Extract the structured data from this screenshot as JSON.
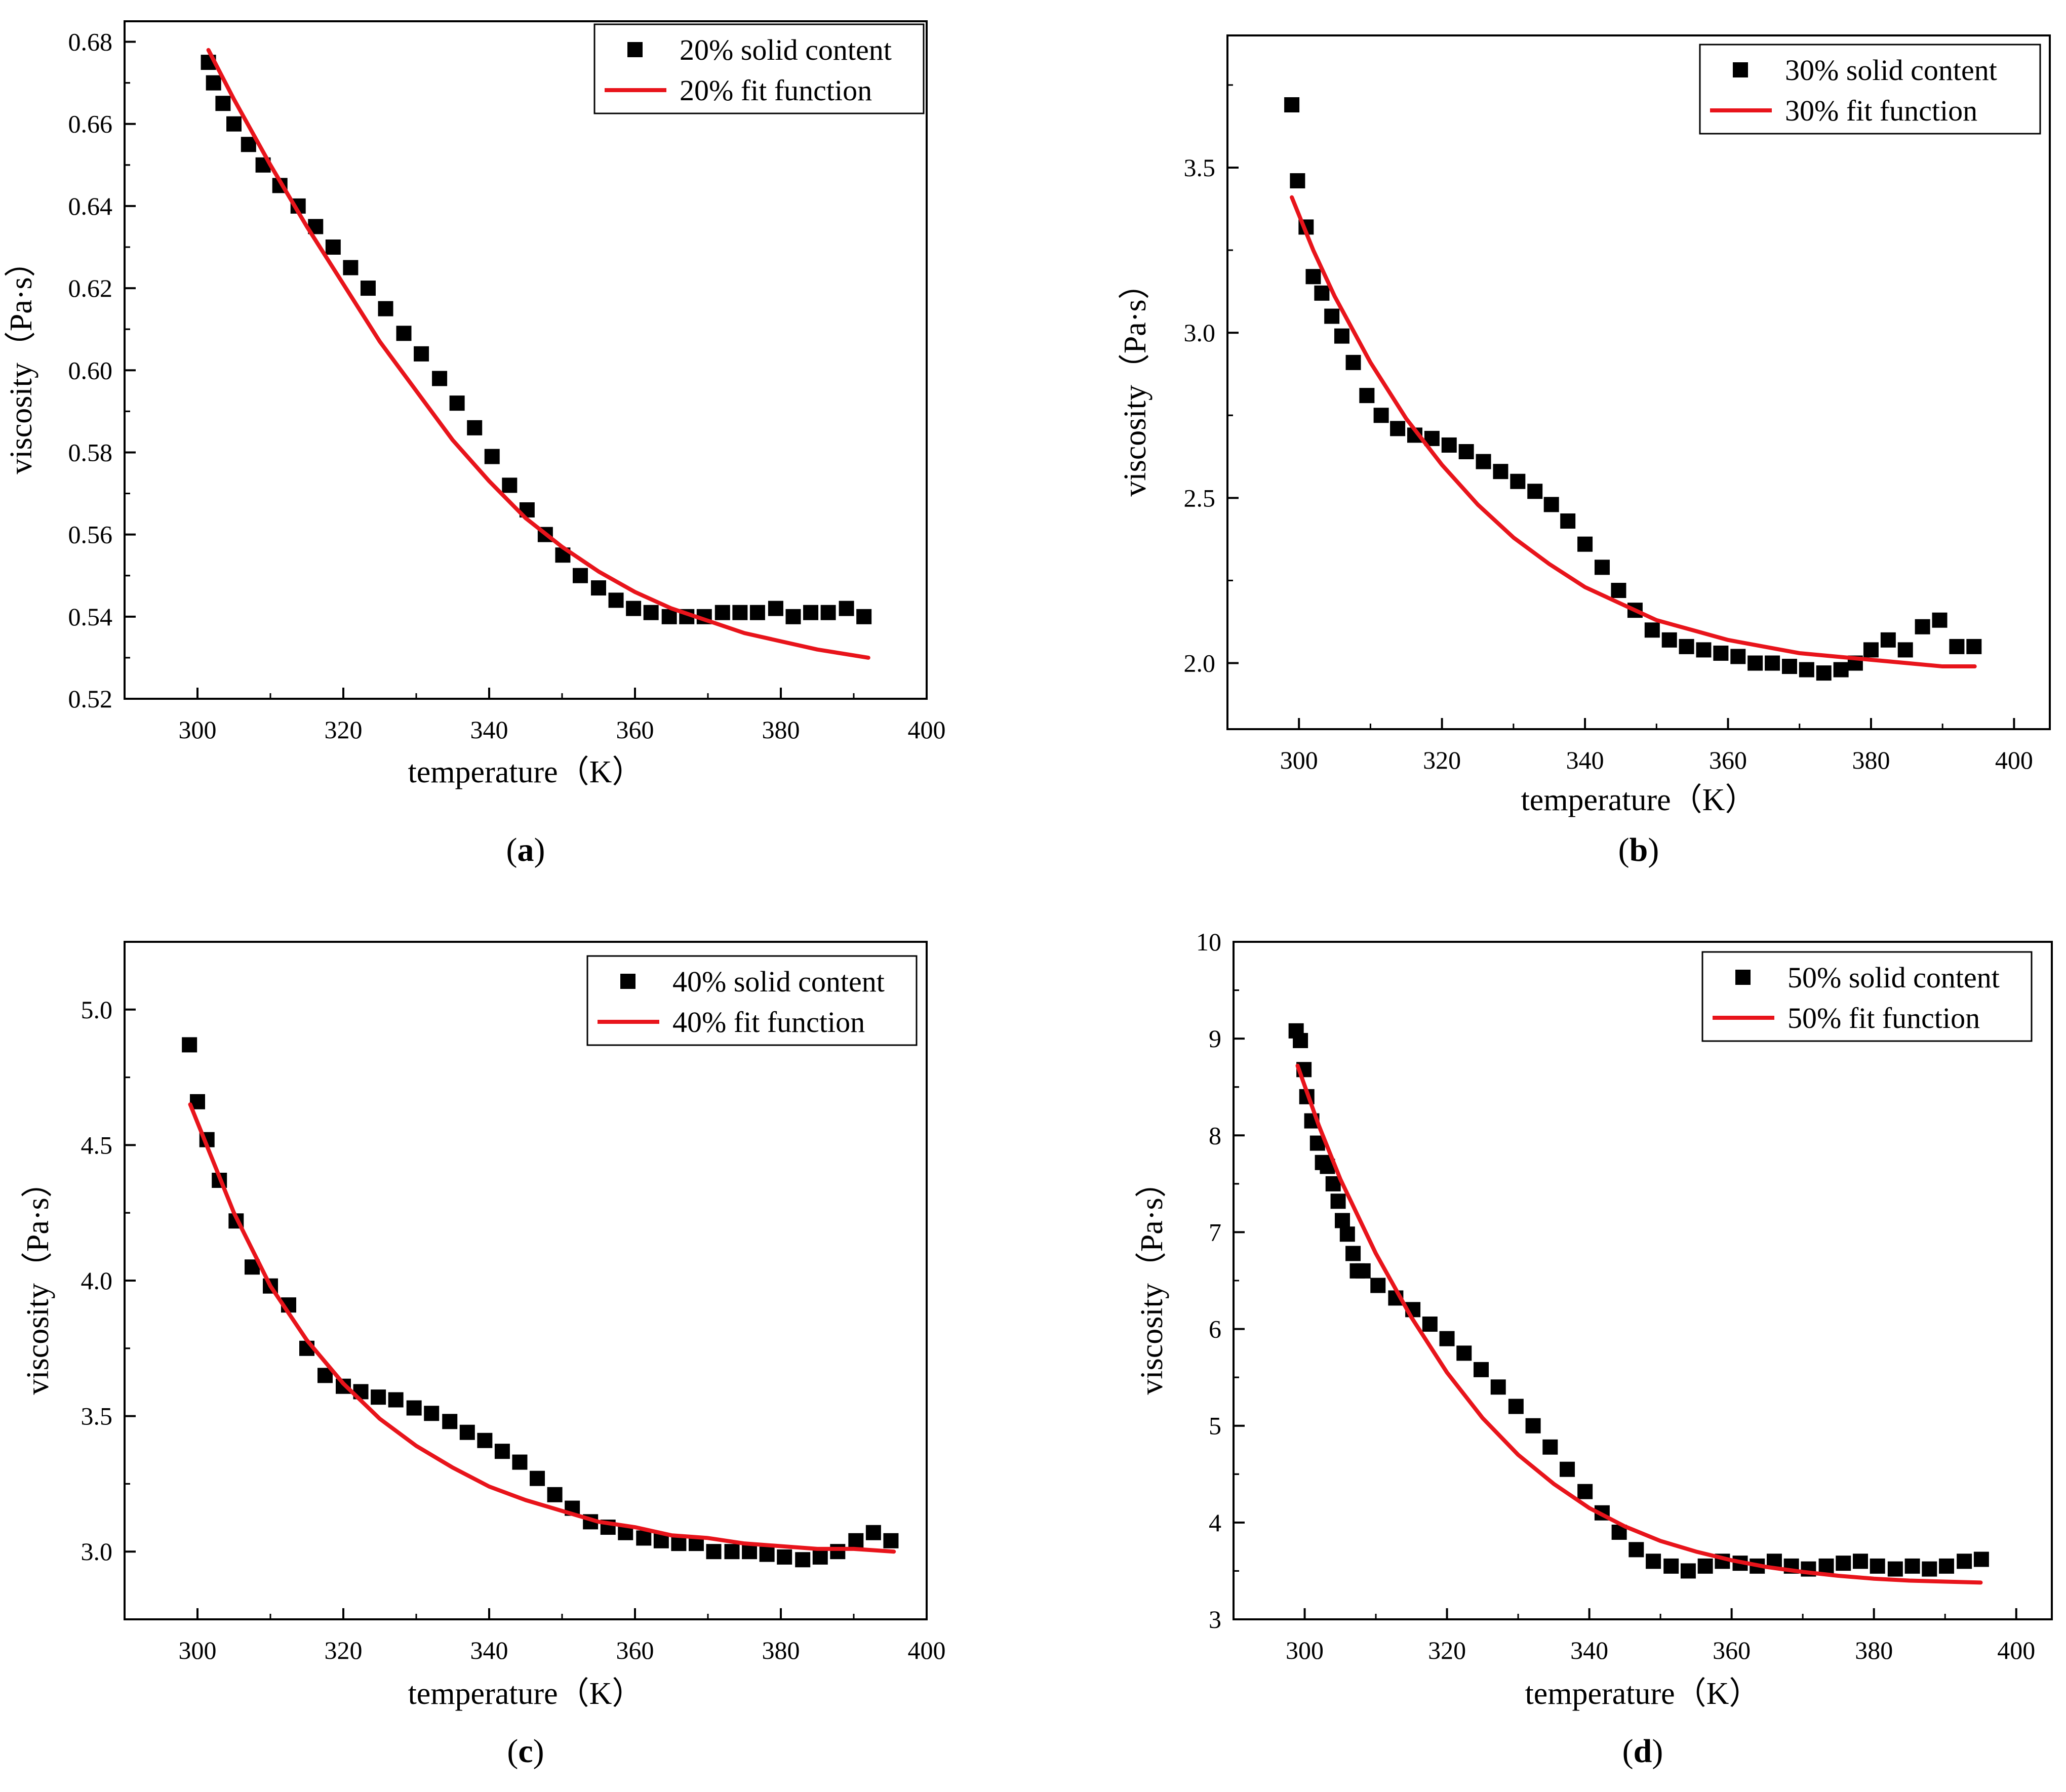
{
  "figure": {
    "panels": [
      {
        "id": "a",
        "label_open": "(",
        "label_letter": "a",
        "label_close": ")"
      },
      {
        "id": "b",
        "label_open": "(",
        "label_letter": "b",
        "label_close": ")"
      },
      {
        "id": "c",
        "label_open": "(",
        "label_letter": "c",
        "label_close": ")"
      },
      {
        "id": "d",
        "label_open": "(",
        "label_letter": "d",
        "label_close": ")"
      }
    ]
  },
  "colors": {
    "marker": "#000000",
    "fit_line": "#e8141b",
    "axis": "#000000",
    "background": "#ffffff"
  },
  "chart_data": [
    {
      "id": "a",
      "type": "scatter",
      "xlabel": "temperature（K）",
      "ylabel": "viscosity（Pa·s）",
      "xlim": [
        290,
        400
      ],
      "ylim": [
        0.52,
        0.685
      ],
      "xticks": [
        "300",
        "320",
        "340",
        "360",
        "380",
        "400"
      ],
      "xtick_values": [
        300,
        320,
        340,
        360,
        380,
        400
      ],
      "yticks": [
        "0.52",
        "0.54",
        "0.56",
        "0.58",
        "0.60",
        "0.62",
        "0.64",
        "0.66",
        "0.68"
      ],
      "ytick_values": [
        0.52,
        0.54,
        0.56,
        0.58,
        0.6,
        0.62,
        0.64,
        0.66,
        0.68
      ],
      "legend_position": "top-right",
      "series": [
        {
          "name": "20% solid content",
          "kind": "markers",
          "x": [
            301.5,
            302.2,
            303.5,
            305.0,
            307.0,
            309.0,
            311.3,
            313.8,
            316.2,
            318.6,
            321.0,
            323.4,
            325.8,
            328.3,
            330.7,
            333.2,
            335.6,
            338.0,
            340.4,
            342.8,
            345.2,
            347.7,
            350.1,
            352.5,
            355.0,
            357.4,
            359.8,
            362.2,
            364.7,
            367.1,
            369.5,
            372.0,
            374.4,
            376.8,
            379.3,
            381.7,
            384.1,
            386.5,
            389.0,
            391.4
          ],
          "y": [
            0.675,
            0.67,
            0.665,
            0.66,
            0.655,
            0.65,
            0.645,
            0.64,
            0.635,
            0.63,
            0.625,
            0.62,
            0.615,
            0.609,
            0.604,
            0.598,
            0.592,
            0.586,
            0.579,
            0.572,
            0.566,
            0.56,
            0.555,
            0.55,
            0.547,
            0.544,
            0.542,
            0.541,
            0.54,
            0.54,
            0.54,
            0.541,
            0.541,
            0.541,
            0.542,
            0.54,
            0.541,
            0.541,
            0.542,
            0.54
          ]
        },
        {
          "name": "20% fit function",
          "kind": "line",
          "x": [
            301.5,
            305,
            310,
            315,
            320,
            325,
            330,
            335,
            340,
            345,
            350,
            355,
            360,
            365,
            370,
            375,
            380,
            385,
            392
          ],
          "y": [
            0.678,
            0.666,
            0.65,
            0.635,
            0.621,
            0.607,
            0.595,
            0.583,
            0.573,
            0.564,
            0.557,
            0.551,
            0.546,
            0.542,
            0.539,
            0.536,
            0.534,
            0.532,
            0.53
          ]
        }
      ]
    },
    {
      "id": "b",
      "type": "scatter",
      "xlabel": "temperature（K）",
      "ylabel": "viscosity（Pa·s）",
      "xlim": [
        290,
        405
      ],
      "ylim": [
        1.8,
        3.9
      ],
      "xticks": [
        "300",
        "320",
        "340",
        "360",
        "380",
        "400"
      ],
      "xtick_values": [
        300,
        320,
        340,
        360,
        380,
        400
      ],
      "yticks": [
        "2.0",
        "2.5",
        "3.0",
        "3.5"
      ],
      "ytick_values": [
        2.0,
        2.5,
        3.0,
        3.5
      ],
      "legend_position": "top-right",
      "series": [
        {
          "name": "30% solid content",
          "kind": "markers",
          "x": [
            299.0,
            299.8,
            301.0,
            302.0,
            303.2,
            304.6,
            306.0,
            307.6,
            309.5,
            311.5,
            313.8,
            316.2,
            318.6,
            321.0,
            323.4,
            325.8,
            328.2,
            330.6,
            333.0,
            335.3,
            337.6,
            340.0,
            342.4,
            344.7,
            347.0,
            349.4,
            351.8,
            354.2,
            356.6,
            359.0,
            361.4,
            363.8,
            366.2,
            368.6,
            371.0,
            373.4,
            375.8,
            377.8,
            380.0,
            382.4,
            384.8,
            387.2,
            389.6,
            392.0,
            394.4
          ],
          "y": [
            3.69,
            3.46,
            3.32,
            3.17,
            3.12,
            3.05,
            2.99,
            2.91,
            2.81,
            2.75,
            2.71,
            2.69,
            2.68,
            2.66,
            2.64,
            2.61,
            2.58,
            2.55,
            2.52,
            2.48,
            2.43,
            2.36,
            2.29,
            2.22,
            2.16,
            2.1,
            2.07,
            2.05,
            2.04,
            2.03,
            2.02,
            2.0,
            2.0,
            1.99,
            1.98,
            1.97,
            1.98,
            2.0,
            2.04,
            2.07,
            2.04,
            2.11,
            2.13,
            2.05,
            2.05
          ]
        },
        {
          "name": "30% fit function",
          "kind": "line",
          "x": [
            299,
            302,
            305,
            310,
            315,
            320,
            325,
            330,
            335,
            340,
            345,
            350,
            355,
            360,
            365,
            370,
            375,
            380,
            385,
            390,
            394.5
          ],
          "y": [
            3.41,
            3.25,
            3.11,
            2.91,
            2.74,
            2.6,
            2.48,
            2.38,
            2.3,
            2.23,
            2.18,
            2.13,
            2.1,
            2.07,
            2.05,
            2.03,
            2.02,
            2.01,
            2.0,
            1.99,
            1.99
          ]
        }
      ]
    },
    {
      "id": "c",
      "type": "scatter",
      "xlabel": "temperature（K）",
      "ylabel": "viscosity（Pa·s）",
      "xlim": [
        290,
        400
      ],
      "ylim": [
        2.75,
        5.25
      ],
      "xticks": [
        "300",
        "320",
        "340",
        "360",
        "380",
        "400"
      ],
      "xtick_values": [
        300,
        320,
        340,
        360,
        380,
        400
      ],
      "yticks": [
        "3.0",
        "3.5",
        "4.0",
        "4.5",
        "5.0"
      ],
      "ytick_values": [
        3.0,
        3.5,
        4.0,
        4.5,
        5.0
      ],
      "legend_position": "top-right",
      "series": [
        {
          "name": "40% solid content",
          "kind": "markers",
          "x": [
            298.9,
            300.0,
            301.3,
            303.0,
            305.3,
            307.5,
            310.0,
            312.5,
            315.0,
            317.5,
            320.0,
            322.4,
            324.8,
            327.2,
            329.7,
            332.1,
            334.6,
            337.0,
            339.4,
            341.8,
            344.2,
            346.6,
            349.0,
            351.4,
            353.9,
            356.3,
            358.7,
            361.2,
            363.6,
            366.0,
            368.4,
            370.8,
            373.3,
            375.7,
            378.1,
            380.5,
            383.0,
            385.4,
            387.8,
            390.3,
            392.7,
            395.1
          ],
          "y": [
            4.87,
            4.66,
            4.52,
            4.37,
            4.22,
            4.05,
            3.98,
            3.91,
            3.75,
            3.65,
            3.61,
            3.59,
            3.57,
            3.56,
            3.53,
            3.51,
            3.48,
            3.44,
            3.41,
            3.37,
            3.33,
            3.27,
            3.21,
            3.16,
            3.11,
            3.09,
            3.07,
            3.05,
            3.04,
            3.03,
            3.03,
            3.0,
            3.0,
            3.0,
            2.99,
            2.98,
            2.97,
            2.98,
            3.0,
            3.04,
            3.07,
            3.04
          ]
        },
        {
          "name": "40% fit function",
          "kind": "line",
          "x": [
            299,
            302,
            305,
            310,
            315,
            320,
            325,
            330,
            335,
            340,
            345,
            350,
            355,
            360,
            365,
            370,
            375,
            380,
            385,
            390,
            395.5
          ],
          "y": [
            4.65,
            4.45,
            4.25,
            3.98,
            3.78,
            3.62,
            3.49,
            3.39,
            3.31,
            3.24,
            3.19,
            3.15,
            3.11,
            3.09,
            3.06,
            3.05,
            3.03,
            3.02,
            3.01,
            3.01,
            3.0
          ]
        }
      ]
    },
    {
      "id": "d",
      "type": "scatter",
      "xlabel": "temperature（K）",
      "ylabel": "viscosity（Pa·s）",
      "xlim": [
        290,
        405
      ],
      "ylim": [
        3,
        10
      ],
      "xticks": [
        "300",
        "320",
        "340",
        "360",
        "380",
        "400"
      ],
      "xtick_values": [
        300,
        320,
        340,
        360,
        380,
        400
      ],
      "yticks": [
        "3",
        "4",
        "5",
        "6",
        "7",
        "8",
        "9",
        "10"
      ],
      "ytick_values": [
        3,
        4,
        5,
        6,
        7,
        8,
        9,
        10
      ],
      "legend_position": "top-right",
      "series": [
        {
          "name": "50% solid content",
          "kind": "markers",
          "x": [
            298.8,
            299.4,
            299.9,
            300.3,
            301.0,
            301.8,
            302.5,
            303.2,
            304.0,
            304.7,
            305.3,
            306.0,
            306.8,
            307.4,
            308.2,
            310.3,
            312.8,
            315.2,
            317.6,
            320.0,
            322.4,
            324.8,
            327.2,
            329.7,
            332.1,
            334.5,
            336.9,
            339.4,
            341.8,
            344.2,
            346.6,
            349.0,
            351.5,
            353.9,
            356.3,
            358.7,
            361.2,
            363.6,
            366.0,
            368.4,
            370.8,
            373.3,
            375.7,
            378.1,
            380.5,
            383.0,
            385.4,
            387.8,
            390.2,
            392.7,
            395.1
          ],
          "y": [
            9.08,
            8.98,
            8.68,
            8.4,
            8.15,
            7.92,
            7.72,
            7.68,
            7.5,
            7.32,
            7.12,
            6.98,
            6.78,
            6.6,
            6.6,
            6.45,
            6.32,
            6.2,
            6.05,
            5.9,
            5.75,
            5.58,
            5.4,
            5.2,
            5.0,
            4.78,
            4.55,
            4.32,
            4.1,
            3.9,
            3.72,
            3.6,
            3.55,
            3.5,
            3.55,
            3.6,
            3.58,
            3.55,
            3.6,
            3.55,
            3.52,
            3.55,
            3.58,
            3.6,
            3.55,
            3.52,
            3.55,
            3.52,
            3.55,
            3.6,
            3.62
          ]
        },
        {
          "name": "50% fit function",
          "kind": "line",
          "x": [
            299,
            302,
            305,
            310,
            315,
            320,
            325,
            330,
            335,
            340,
            345,
            350,
            355,
            360,
            365,
            370,
            375,
            380,
            385,
            390,
            395
          ],
          "y": [
            8.72,
            8.1,
            7.55,
            6.78,
            6.12,
            5.55,
            5.08,
            4.7,
            4.4,
            4.15,
            3.96,
            3.81,
            3.7,
            3.61,
            3.54,
            3.49,
            3.45,
            3.42,
            3.4,
            3.39,
            3.38
          ]
        }
      ]
    }
  ]
}
